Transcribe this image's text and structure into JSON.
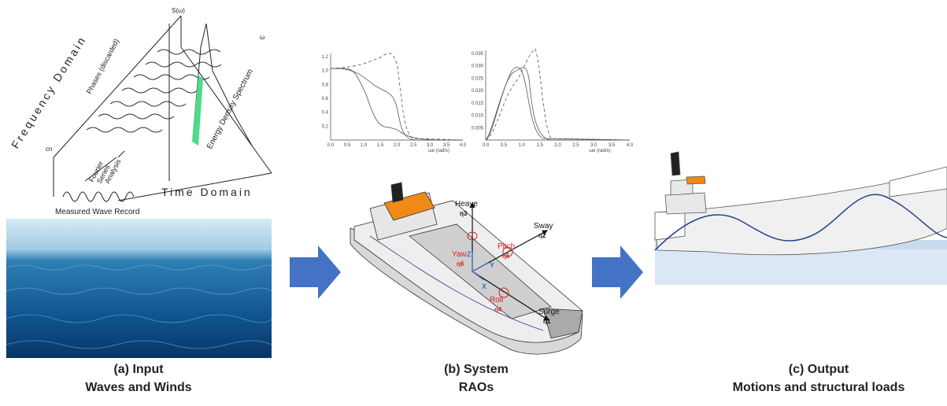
{
  "input": {
    "caption": "(a)  Input",
    "subtitle": "Waves and Winds",
    "sketch": {
      "frequency_domain": "Frequency Domain",
      "time_domain": "Time Domain",
      "measured_wave_record": "Measured Wave Record",
      "energy_density_spectrum": "Energy Density Spectrum",
      "phases": "Phases (discarded)",
      "fourier": [
        "Fourier",
        "Series",
        "Analysis"
      ],
      "spectrum_label": "S(ω)",
      "omega": "ω",
      "amplitude": "cn"
    }
  },
  "system": {
    "caption": "(b) System",
    "subtitle": "RAOs",
    "rao_plots": [
      {
        "yticks": [
          "0.2",
          "0.4",
          "0.6",
          "0.8",
          "1.0",
          "1.2"
        ],
        "xticks": [
          "0.0",
          "0.5",
          "1.0",
          "1.5",
          "2.0",
          "2.5",
          "3.0",
          "3.5",
          "4.0"
        ],
        "xlabel": "ωe (rad/s)"
      },
      {
        "yticks": [
          "0.005",
          "0.010",
          "0.015",
          "0.020",
          "0.025",
          "0.030",
          "0.035"
        ],
        "xticks": [
          "0.0",
          "0.5",
          "1.0",
          "1.5",
          "2.0",
          "2.5",
          "3.0",
          "3.5",
          "4.0"
        ],
        "xlabel": "ωe (rad/s)"
      }
    ],
    "motions": [
      {
        "name": "Heave",
        "symbol": "η3"
      },
      {
        "name": "Sway",
        "symbol": "η2"
      },
      {
        "name": "Pitch",
        "symbol": "η5"
      },
      {
        "name": "Yaw",
        "symbol": "η6"
      },
      {
        "name": "Roll",
        "symbol": "η4"
      },
      {
        "name": "Surge",
        "symbol": "η1"
      }
    ],
    "axes": [
      "Z",
      "Y",
      "X"
    ]
  },
  "output": {
    "caption": "(c) Output",
    "subtitle": "Motions and structural loads"
  }
}
